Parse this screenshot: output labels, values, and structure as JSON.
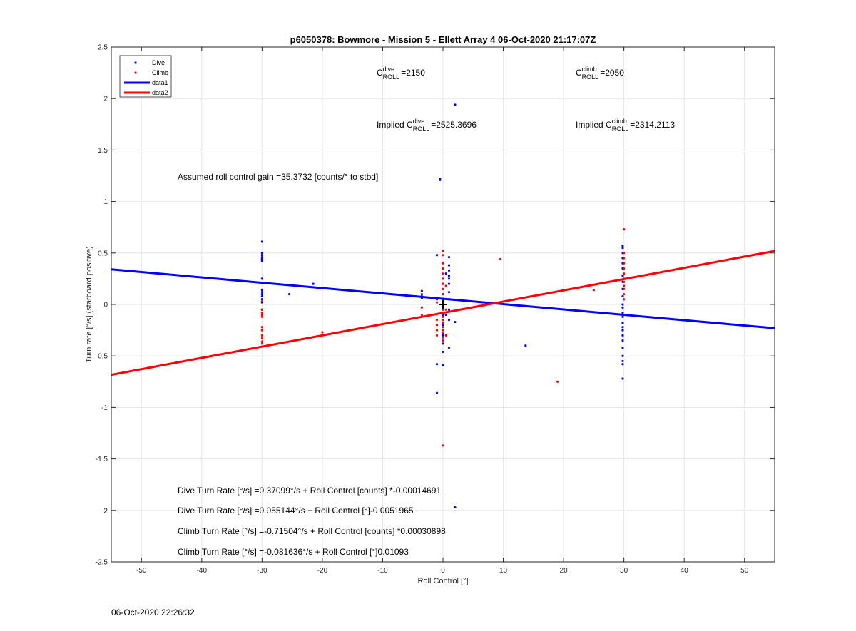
{
  "chart_data": {
    "type": "scatter",
    "title": "p6050378: Bowmore - Mission 5 - Ellett Array 4 06-Oct-2020 21:17:07Z",
    "xlabel": "Roll Control [°]",
    "ylabel": "Turn rate [°/s] (starboard positive)",
    "xlim": [
      -55,
      55
    ],
    "ylim": [
      -2.5,
      2.5
    ],
    "xticks": [
      -50,
      -40,
      -30,
      -20,
      -10,
      0,
      10,
      20,
      30,
      40,
      50
    ],
    "yticks": [
      -2.5,
      -2,
      -1.5,
      -1,
      -0.5,
      0,
      0.5,
      1,
      1.5,
      2,
      2.5
    ],
    "grid": true,
    "legend_position": "top-left",
    "series": [
      {
        "name": "Dive",
        "kind": "points",
        "color": "#0000ff",
        "points": [
          [
            -30,
            0.61
          ],
          [
            -30,
            0.5
          ],
          [
            -30,
            0.48
          ],
          [
            -30,
            0.46
          ],
          [
            -30,
            0.45
          ],
          [
            -30,
            0.44
          ],
          [
            -30,
            0.43
          ],
          [
            -30,
            0.42
          ],
          [
            -30,
            0.25
          ],
          [
            -30,
            0.14
          ],
          [
            -30,
            0.12
          ],
          [
            -30,
            0.1
          ],
          [
            -30,
            0.08
          ],
          [
            -30,
            0.05
          ],
          [
            -30,
            0.02
          ],
          [
            -30,
            -0.05
          ],
          [
            -25.5,
            0.1
          ],
          [
            -21.5,
            0.2
          ],
          [
            -3.5,
            0.13
          ],
          [
            -3.5,
            0.1
          ],
          [
            -3.5,
            0.08
          ],
          [
            -3.5,
            0.06
          ],
          [
            -1,
            0.48
          ],
          [
            -1,
            0.05
          ],
          [
            -1,
            -0.58
          ],
          [
            -1,
            -0.86
          ],
          [
            -0.5,
            1.22
          ],
          [
            -0.5,
            1.21
          ],
          [
            0,
            0.2
          ],
          [
            0,
            0.15
          ],
          [
            0,
            0.1
          ],
          [
            0,
            0.05
          ],
          [
            0,
            0.02
          ],
          [
            0,
            -0.02
          ],
          [
            0,
            -0.1
          ],
          [
            0,
            -0.15
          ],
          [
            0,
            -0.2
          ],
          [
            0,
            -0.3
          ],
          [
            0,
            -0.38
          ],
          [
            0,
            -0.46
          ],
          [
            0,
            -0.59
          ],
          [
            0.5,
            0.3
          ],
          [
            0.5,
            -0.1
          ],
          [
            1,
            0.46
          ],
          [
            1,
            0.38
          ],
          [
            1,
            0.33
          ],
          [
            1,
            0.28
          ],
          [
            1,
            0.25
          ],
          [
            1,
            0.2
          ],
          [
            1,
            0.12
          ],
          [
            1,
            0.05
          ],
          [
            1,
            -0.05
          ],
          [
            1,
            -0.15
          ],
          [
            1,
            -0.42
          ],
          [
            2,
            1.94
          ],
          [
            2,
            -0.17
          ],
          [
            2,
            -1.97
          ],
          [
            13.7,
            -0.4
          ],
          [
            29.8,
            0.57
          ],
          [
            29.8,
            0.55
          ],
          [
            29.8,
            0.5
          ],
          [
            29.8,
            0.45
          ],
          [
            29.8,
            0.4
          ],
          [
            29.8,
            0.35
          ],
          [
            29.8,
            0.28
          ],
          [
            29.8,
            0.22
          ],
          [
            29.8,
            0.15
          ],
          [
            29.8,
            0.08
          ],
          [
            29.8,
            0.0
          ],
          [
            29.8,
            -0.03
          ],
          [
            29.8,
            -0.08
          ],
          [
            29.8,
            -0.12
          ],
          [
            29.8,
            -0.18
          ],
          [
            29.8,
            -0.22
          ],
          [
            29.8,
            -0.25
          ],
          [
            29.8,
            -0.3
          ],
          [
            29.8,
            -0.35
          ],
          [
            29.8,
            -0.42
          ],
          [
            29.8,
            -0.5
          ],
          [
            29.8,
            -0.55
          ],
          [
            29.8,
            -0.58
          ],
          [
            29.8,
            -0.72
          ]
        ]
      },
      {
        "name": "Climb",
        "kind": "points",
        "color": "#ff0000",
        "points": [
          [
            -30,
            0.03
          ],
          [
            -30,
            -0.05
          ],
          [
            -30,
            -0.08
          ],
          [
            -30,
            -0.1
          ],
          [
            -30,
            -0.12
          ],
          [
            -30,
            -0.22
          ],
          [
            -30,
            -0.25
          ],
          [
            -30,
            -0.3
          ],
          [
            -30,
            -0.33
          ],
          [
            -30,
            -0.36
          ],
          [
            -30,
            -0.38
          ],
          [
            -20,
            -0.27
          ],
          [
            -3.5,
            -0.03
          ],
          [
            -3.5,
            -0.1
          ],
          [
            -1,
            0.02
          ],
          [
            -1,
            -0.15
          ],
          [
            -1,
            -0.2
          ],
          [
            -1,
            -0.25
          ],
          [
            -1,
            -0.3
          ],
          [
            0,
            0.52
          ],
          [
            0,
            0.48
          ],
          [
            0,
            0.4
          ],
          [
            0,
            0.35
          ],
          [
            0,
            0.3
          ],
          [
            0,
            0.25
          ],
          [
            0,
            0.2
          ],
          [
            0,
            0.15
          ],
          [
            0,
            0.1
          ],
          [
            0,
            0.05
          ],
          [
            0,
            -0.02
          ],
          [
            0,
            -0.05
          ],
          [
            0,
            -0.08
          ],
          [
            0,
            -0.12
          ],
          [
            0,
            -0.15
          ],
          [
            0,
            -0.18
          ],
          [
            0,
            -0.22
          ],
          [
            0,
            -0.25
          ],
          [
            0,
            -0.28
          ],
          [
            0,
            -0.32
          ],
          [
            0,
            -0.35
          ],
          [
            0,
            -1.37
          ],
          [
            0.5,
            0.18
          ],
          [
            0.5,
            -0.05
          ],
          [
            0.5,
            -0.3
          ],
          [
            9.5,
            0.44
          ],
          [
            19,
            -0.75
          ],
          [
            25,
            0.14
          ],
          [
            30,
            0.73
          ],
          [
            30,
            0.5
          ],
          [
            30,
            0.45
          ],
          [
            30,
            0.4
          ],
          [
            30,
            0.35
          ],
          [
            30,
            0.3
          ],
          [
            30,
            0.25
          ],
          [
            30,
            0.22
          ],
          [
            30,
            0.18
          ],
          [
            30,
            0.15
          ],
          [
            30,
            0.1
          ],
          [
            30,
            0.05
          ]
        ]
      },
      {
        "name": "data1",
        "kind": "line",
        "color": "#0000ff",
        "intercept": 0.055144,
        "slope": -0.0051965
      },
      {
        "name": "data2",
        "kind": "line",
        "color": "#ff0000",
        "intercept": -0.081636,
        "slope": 0.01093
      }
    ],
    "center_marker": [
      0,
      0
    ],
    "annotations": {
      "c_dive": {
        "base": "C",
        "sup": "dive",
        "sub": "ROLL",
        "value": "=2150"
      },
      "c_climb": {
        "base": "C",
        "sup": "climb",
        "sub": "ROLL",
        "value": "=2050"
      },
      "implied_dive": {
        "prefix": "Implied ",
        "base": "C",
        "sup": "dive",
        "sub": "ROLL",
        "value": "=2525.3696"
      },
      "implied_climb": {
        "prefix": "Implied ",
        "base": "C",
        "sup": "climb",
        "sub": "ROLL",
        "value": "=2314.2113"
      },
      "gain": "Assumed roll control gain =35.3732 [counts/° to stbd]",
      "eq1": "Dive Turn Rate [°/s] =0.37099°/s + Roll Control [counts] *-0.00014691",
      "eq2": "Dive Turn Rate [°/s] =0.055144°/s + Roll Control [°]-0.0051965",
      "eq3": "Climb Turn Rate [°/s] =-0.71504°/s + Roll Control [counts] *0.00030898",
      "eq4": "Climb Turn Rate [°/s] =-0.081636°/s + Roll Control [°]0.01093"
    }
  },
  "timestamp": "06-Oct-2020 22:26:32"
}
